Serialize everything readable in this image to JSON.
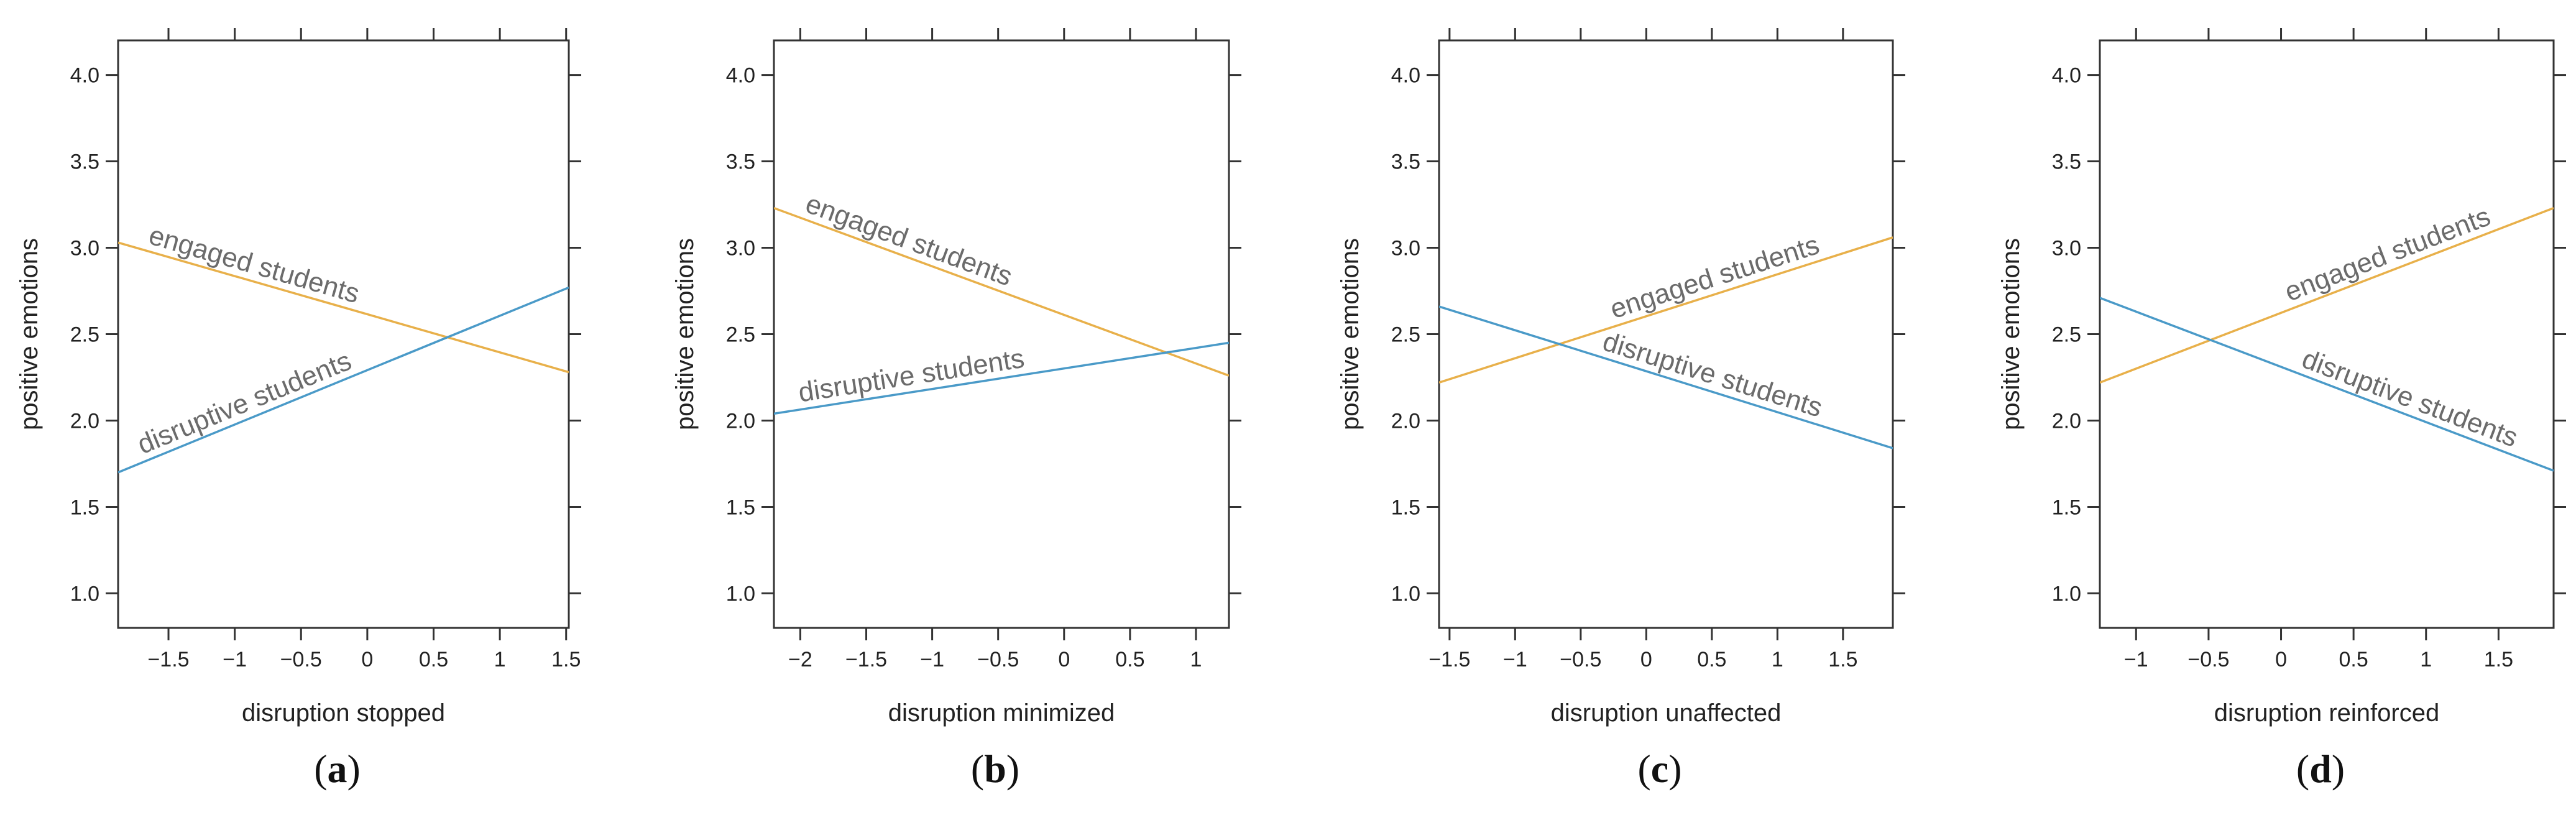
{
  "colors": {
    "engaged": "#e8b04a",
    "disruptive": "#4a9ac8"
  },
  "chart_data": [
    {
      "type": "line",
      "panel_label": "a",
      "xlabel": "disruption stopped",
      "ylabel": "positive emotions",
      "xlim": [
        -1.88,
        1.52
      ],
      "ylim": [
        0.8,
        4.2
      ],
      "xticks": [
        -1.5,
        -1,
        -0.5,
        0,
        0.5,
        1,
        1.5
      ],
      "xtick_labels": [
        "−1.5",
        "−1",
        "−0.5",
        "0",
        "0.5",
        "1",
        "1.5"
      ],
      "yticks": [
        1.0,
        1.5,
        2.0,
        2.5,
        3.0,
        3.5,
        4.0
      ],
      "ytick_labels": [
        "1.0",
        "1.5",
        "2.0",
        "2.5",
        "3.0",
        "3.5",
        "4.0"
      ],
      "grid": false,
      "series": [
        {
          "name": "engaged students",
          "color_key": "engaged",
          "x": [
            -1.88,
            1.52
          ],
          "y": [
            3.03,
            2.28
          ],
          "label_pos": 0.06,
          "label_side": "above"
        },
        {
          "name": "disruptive students",
          "color_key": "disruptive",
          "x": [
            -1.88,
            1.52
          ],
          "y": [
            1.7,
            2.77
          ],
          "label_pos": 0.06,
          "label_side": "above"
        }
      ]
    },
    {
      "type": "line",
      "panel_label": "b",
      "xlabel": "disruption minimized",
      "ylabel": "positive emotions",
      "xlim": [
        -2.2,
        1.25
      ],
      "ylim": [
        0.8,
        4.2
      ],
      "xticks": [
        -2,
        -1.5,
        -1,
        -0.5,
        0,
        0.5,
        1
      ],
      "xtick_labels": [
        "−2",
        "−1.5",
        "−1",
        "−0.5",
        "0",
        "0.5",
        "1"
      ],
      "yticks": [
        1.0,
        1.5,
        2.0,
        2.5,
        3.0,
        3.5,
        4.0
      ],
      "ytick_labels": [
        "1.0",
        "1.5",
        "2.0",
        "2.5",
        "3.0",
        "3.5",
        "4.0"
      ],
      "grid": false,
      "series": [
        {
          "name": "engaged students",
          "color_key": "engaged",
          "x": [
            -2.2,
            1.25
          ],
          "y": [
            3.23,
            2.26
          ],
          "label_pos": 0.06,
          "label_side": "above"
        },
        {
          "name": "disruptive students",
          "color_key": "disruptive",
          "x": [
            -2.2,
            1.25
          ],
          "y": [
            2.04,
            2.45
          ],
          "label_pos": 0.06,
          "label_side": "above"
        }
      ]
    },
    {
      "type": "line",
      "panel_label": "c",
      "xlabel": "disruption unaffected",
      "ylabel": "positive emotions",
      "xlim": [
        -1.58,
        1.88
      ],
      "ylim": [
        0.8,
        4.2
      ],
      "xticks": [
        -1.5,
        -1,
        -0.5,
        0,
        0.5,
        1,
        1.5
      ],
      "xtick_labels": [
        "−1.5",
        "−1",
        "−0.5",
        "0",
        "0.5",
        "1",
        "1.5"
      ],
      "yticks": [
        1.0,
        1.5,
        2.0,
        2.5,
        3.0,
        3.5,
        4.0
      ],
      "ytick_labels": [
        "1.0",
        "1.5",
        "2.0",
        "2.5",
        "3.0",
        "3.5",
        "4.0"
      ],
      "grid": false,
      "series": [
        {
          "name": "engaged students",
          "color_key": "engaged",
          "x": [
            -1.58,
            1.88
          ],
          "y": [
            2.22,
            3.06
          ],
          "label_pos": 0.55,
          "label_side": "above"
        },
        {
          "name": "disruptive students",
          "color_key": "disruptive",
          "x": [
            -1.58,
            1.88
          ],
          "y": [
            2.66,
            1.84
          ],
          "label_pos": 0.52,
          "label_side": "above"
        }
      ]
    },
    {
      "type": "line",
      "panel_label": "d",
      "xlabel": "disruption reinforced",
      "ylabel": "positive emotions",
      "xlim": [
        -1.25,
        1.88
      ],
      "ylim": [
        0.8,
        4.2
      ],
      "xticks": [
        -1,
        -0.5,
        0,
        0.5,
        1,
        1.5
      ],
      "xtick_labels": [
        "−1",
        "−0.5",
        "0",
        "0.5",
        "1",
        "1.5"
      ],
      "yticks": [
        1.0,
        1.5,
        2.0,
        2.5,
        3.0,
        3.5,
        4.0
      ],
      "ytick_labels": [
        "1.0",
        "1.5",
        "2.0",
        "2.5",
        "3.0",
        "3.5",
        "4.0"
      ],
      "grid": false,
      "series": [
        {
          "name": "engaged students",
          "color_key": "engaged",
          "x": [
            -1.25,
            1.88
          ],
          "y": [
            2.22,
            3.23
          ],
          "label_pos": 0.58,
          "label_side": "above"
        },
        {
          "name": "disruptive students",
          "color_key": "disruptive",
          "x": [
            -1.25,
            1.88
          ],
          "y": [
            2.71,
            1.71
          ],
          "label_pos": 0.6,
          "label_side": "above"
        }
      ]
    }
  ]
}
